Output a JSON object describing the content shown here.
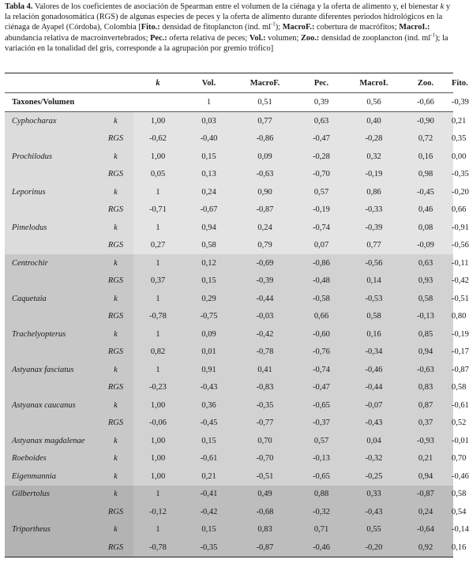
{
  "caption": {
    "t1": "Tabla 4.",
    "t2": " Valores de los coeficientes de asociación de Spearman entre el volumen de la ciénaga y la oferta de alimento y, el bienestar ",
    "t3": "k",
    "t4": " y la relación gonadosomática (RGS) de algunas especies de peces y la oferta de alimento durante diferentes periodos hidrológicos en la ciénaga de Ayapel (Córdoba), Colombia [",
    "t5": "Fito.:",
    "t6": " densidad de fitoplancton (ind. ml",
    "t7": "-1",
    "t8": "); ",
    "t9": "MacroF.:",
    "t10": " cobertura de macrófitos; ",
    "t11": "MacroI.:",
    "t12": " abundancia relativa de macroinvertebrados; ",
    "t13": "Pec.:",
    "t14": " oferta relativa de peces; ",
    "t15": "Vol.:",
    "t16": " volumen; ",
    "t17": "Zoo.:",
    "t18": " densidad de zooplancton (ind. ml",
    "t19": "-1",
    "t20": "); la variación en la tonalidad del gris, corresponde a la agrupación por gremio trófico]"
  },
  "table": {
    "headers": [
      "",
      "k",
      "Vol.",
      "MacroF.",
      "Pec.",
      "MacroI.",
      "Zoo.",
      "Fito."
    ],
    "totals": {
      "label": "Taxones/Volumen",
      "values": [
        "1",
        "0,51",
        "0,39",
        "0,56",
        "-0,66",
        "-0,39"
      ]
    },
    "rows": [
      {
        "group": 1,
        "taxon": "Cyphocharax",
        "label": "k",
        "k": "1,00",
        "v": [
          "0,03",
          "0,77",
          "0,63",
          "0,40",
          "-0,90",
          "0,21"
        ],
        "bold": [
          1
        ]
      },
      {
        "group": 1,
        "taxon": "",
        "label": "RGS",
        "k": "-0,62",
        "v": [
          "-0,40",
          "-0,86",
          "-0,47",
          "-0,28",
          "0,72",
          "0,35"
        ],
        "bold": [
          4
        ]
      },
      {
        "group": 1,
        "taxon": "Prochilodus",
        "label": "k",
        "k": "1,00",
        "v": [
          "0,15",
          "0,09",
          "-0,28",
          "0,32",
          "0,16",
          "0,00"
        ],
        "bold": [
          3
        ]
      },
      {
        "group": 1,
        "taxon": "",
        "label": "RGS",
        "k": "0,05",
        "v": [
          "0,13",
          "-0,63",
          "-0,70",
          "-0,19",
          "0,98",
          "-0,35"
        ],
        "bold": [
          4
        ]
      },
      {
        "group": 1,
        "taxon": "Leporinus",
        "label": "k",
        "k": "1",
        "v": [
          "0,24",
          "0,90",
          "0,57",
          "0,86",
          "-0,45",
          "-0,20"
        ],
        "bold": [
          1
        ]
      },
      {
        "group": 1,
        "taxon": "",
        "label": "RGS",
        "k": "-0,71",
        "v": [
          "-0,67",
          "-0,87",
          "-0,19",
          "-0,33",
          "0,46",
          "0,66"
        ],
        "bold": [
          5
        ]
      },
      {
        "group": 1,
        "taxon": "Pimelodus",
        "label": "k",
        "k": "1",
        "v": [
          "0,94",
          "0,24",
          "-0,74",
          "-0,39",
          "0,08",
          "-0,91"
        ],
        "bold": [
          0
        ]
      },
      {
        "group": 1,
        "taxon": "",
        "label": "RGS",
        "k": "0,27",
        "v": [
          "0,58",
          "0,79",
          "0,07",
          "0,77",
          "-0,09",
          "-0,56"
        ],
        "bold": [
          1
        ]
      },
      {
        "group": 2,
        "taxon": "Centrochir",
        "label": "k",
        "k": "1",
        "v": [
          "0,12",
          "-0,69",
          "-0,86",
          "-0,56",
          "0,63",
          "-0,11"
        ],
        "bold": [
          4
        ]
      },
      {
        "group": 2,
        "taxon": "",
        "label": "RGS",
        "k": "0,37",
        "v": [
          "0,15",
          "-0,39",
          "-0,48",
          "0,14",
          "0,93",
          "-0,42"
        ],
        "bold": [
          4
        ]
      },
      {
        "group": 2,
        "taxon": "Caquetaia",
        "label": "k",
        "k": "1",
        "v": [
          "0,29",
          "-0,44",
          "-0,58",
          "-0,53",
          "0,58",
          "-0,51"
        ],
        "bold": [
          4
        ]
      },
      {
        "group": 2,
        "taxon": "",
        "label": "RGS",
        "k": "-0,78",
        "v": [
          "-0,75",
          "-0,03",
          "0,66",
          "0,58",
          "-0,13",
          "0,80"
        ],
        "bold": [
          5
        ]
      },
      {
        "group": 2,
        "taxon": "Trachelyopterus",
        "label": "k",
        "k": "1",
        "v": [
          "0,09",
          "-0,42",
          "-0,60",
          "0,16",
          "0,85",
          "-0,19"
        ],
        "bold": [
          4
        ]
      },
      {
        "group": 2,
        "taxon": "",
        "label": "RGS",
        "k": "0,82",
        "v": [
          "0,01",
          "-0,78",
          "-0,76",
          "-0,34",
          "0,94",
          "-0,17"
        ],
        "bold": [
          4
        ]
      },
      {
        "group": 2,
        "taxon": "Astyanax fasciatus",
        "label": "k",
        "k": "1",
        "v": [
          "0,91",
          "0,41",
          "-0,74",
          "-0,46",
          "-0,63",
          "-0,87"
        ],
        "bold": [
          0
        ]
      },
      {
        "group": 2,
        "taxon": "",
        "label": "RGS",
        "k": "-0,23",
        "v": [
          "-0,43",
          "-0,83",
          "-0,47",
          "-0,44",
          "0,83",
          "0,58"
        ],
        "bold": [
          4
        ]
      },
      {
        "group": 2,
        "taxon": "Astyanax caucanus",
        "label": "k",
        "k": "1,00",
        "v": [
          "0,36",
          "-0,35",
          "-0,65",
          "-0,07",
          "0,87",
          "-0,61"
        ],
        "bold": [
          4
        ]
      },
      {
        "group": 2,
        "taxon": "",
        "label": "RGS",
        "k": "-0,06",
        "v": [
          "-0,45",
          "-0,77",
          "-0,37",
          "-0,43",
          "0,37",
          "0,52"
        ],
        "bold": [
          5
        ]
      },
      {
        "group": 2,
        "taxon": "Astyanax magdalenae",
        "label": "k",
        "k": "1,00",
        "v": [
          "0,15",
          "0,70",
          "0,57",
          "0,04",
          "-0,93",
          "-0,01"
        ],
        "bold": [
          1
        ]
      },
      {
        "group": 2,
        "taxon": "Roeboides",
        "label": "k",
        "k": "1,00",
        "v": [
          "-0,61",
          "-0,70",
          "-0,13",
          "-0,32",
          "0,21",
          "0,70"
        ],
        "bold": [
          5
        ]
      },
      {
        "group": 2,
        "taxon": "Eigenmannia",
        "label": "k",
        "k": "1,00",
        "v": [
          "0,21",
          "-0,51",
          "-0,65",
          "-0,25",
          "0,94",
          "-0,46"
        ],
        "bold": [
          4
        ]
      },
      {
        "group": 3,
        "taxon": "Gilbertolus",
        "label": "k",
        "k": "1",
        "v": [
          "-0,41",
          "0,49",
          "0,88",
          "0,33",
          "-0,87",
          "0,58"
        ],
        "bold": [
          2
        ]
      },
      {
        "group": 3,
        "taxon": "",
        "label": "RGS",
        "k": "-0,12",
        "v": [
          "-0,42",
          "-0,68",
          "-0,32",
          "-0,43",
          "0,24",
          "0,54"
        ],
        "bold": [
          5
        ]
      },
      {
        "group": 3,
        "taxon": "Triportheus",
        "label": "k",
        "k": "1",
        "v": [
          "0,15",
          "0,83",
          "0,71",
          "0,55",
          "-0,64",
          "-0,14"
        ],
        "bold": [
          1
        ]
      },
      {
        "group": 3,
        "taxon": "",
        "label": "RGS",
        "k": "-0,78",
        "v": [
          "-0,35",
          "-0,87",
          "-0,46",
          "-0,20",
          "0,92",
          "0,16"
        ],
        "bold": [
          4
        ]
      }
    ]
  }
}
